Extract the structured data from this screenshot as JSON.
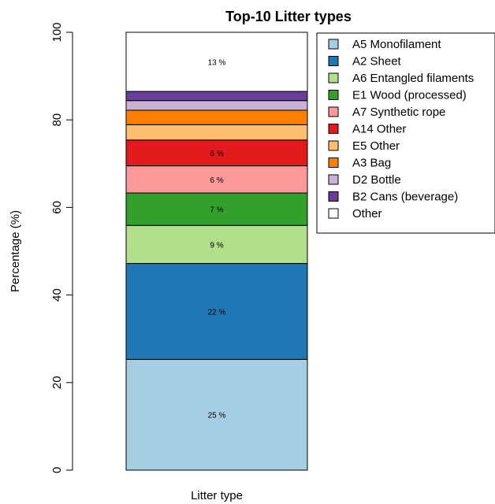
{
  "chart_data": {
    "type": "bar",
    "stacked": true,
    "title": "Top-10 Litter types",
    "xlabel": "Litter type",
    "ylabel": "Percentage (%)",
    "ylim": [
      0,
      100
    ],
    "yticks": [
      "0",
      "20",
      "40",
      "60",
      "80",
      "100"
    ],
    "grid": false,
    "legend_position": "top-right",
    "series": [
      {
        "name": "A5 Monofilament",
        "value": 25.3,
        "color": "#a6cee3",
        "label": "25 %"
      },
      {
        "name": "A2 Sheet",
        "value": 21.9,
        "color": "#1f78b4",
        "label": "22 %"
      },
      {
        "name": "A6 Entangled filaments",
        "value": 8.7,
        "color": "#b2df8a",
        "label": "9 %"
      },
      {
        "name": "E1 Wood (processed)",
        "value": 7.4,
        "color": "#33a02c",
        "label": "7 %"
      },
      {
        "name": "A7 Synthetic rope",
        "value": 6.2,
        "color": "#fb9a99",
        "label": "6 %"
      },
      {
        "name": "A14 Other",
        "value": 5.9,
        "color": "#e31a1c",
        "label": "6 %"
      },
      {
        "name": "E5 Other",
        "value": 3.5,
        "color": "#fdbf6f",
        "label": ""
      },
      {
        "name": "A3 Bag",
        "value": 3.3,
        "color": "#ff7f00",
        "label": ""
      },
      {
        "name": "D2 Bottle",
        "value": 2.2,
        "color": "#cab2d6",
        "label": ""
      },
      {
        "name": "B2 Cans (beverage)",
        "value": 2.1,
        "color": "#6a3d9a",
        "label": ""
      },
      {
        "name": "Other",
        "value": 13.5,
        "color": "#ffffff",
        "label": "13 %"
      }
    ]
  }
}
